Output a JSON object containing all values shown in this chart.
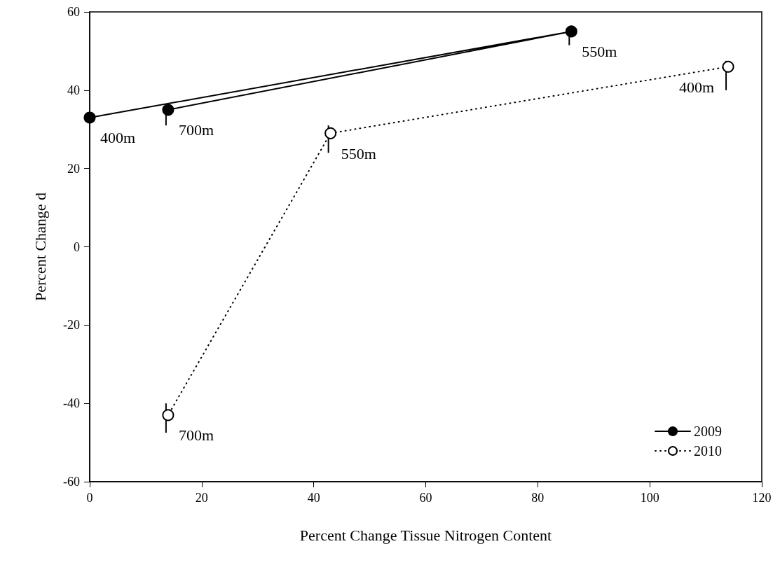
{
  "chart_data": {
    "type": "line",
    "xlabel": "Percent Change Tissue Nitrogen Content",
    "ylabel": "Percent Change d",
    "series": [
      {
        "name": "2009",
        "color": "#000000",
        "x": [
          0,
          86,
          14
        ],
        "values": [
          33,
          55,
          35
        ],
        "errors": [
          null,
          [
            51.5,
            55
          ],
          [
            31,
            35
          ]
        ],
        "line_style": "solid",
        "marker": "circle"
      },
      {
        "name": "2010",
        "color": "#000000",
        "x": [
          114,
          43,
          14
        ],
        "values": [
          46,
          29,
          -43
        ],
        "errors": [
          [
            40,
            47.5
          ],
          [
            24,
            31
          ],
          [
            -47.5,
            -40
          ]
        ],
        "line_style": "dotted",
        "marker": "open circle"
      }
    ],
    "annotations": [
      {
        "text": "400m",
        "x": 0,
        "y": 33
      },
      {
        "text": "550m",
        "x": 86,
        "y": 55
      },
      {
        "text": "700m",
        "x": 14,
        "y": 35
      },
      {
        "text": "400m",
        "x": 114,
        "y": 46
      },
      {
        "text": "550m",
        "x": 43,
        "y": 29
      },
      {
        "text": "700m",
        "x": 14,
        "y": -43
      }
    ],
    "xlim": [
      0,
      120
    ],
    "xticks": [
      0,
      20,
      40,
      60,
      80,
      100,
      120
    ],
    "ylim": [
      -60,
      60
    ],
    "yticks": [
      -60,
      -40,
      -20,
      0,
      20,
      40,
      60
    ],
    "grid": false,
    "legend": "bottom right"
  }
}
